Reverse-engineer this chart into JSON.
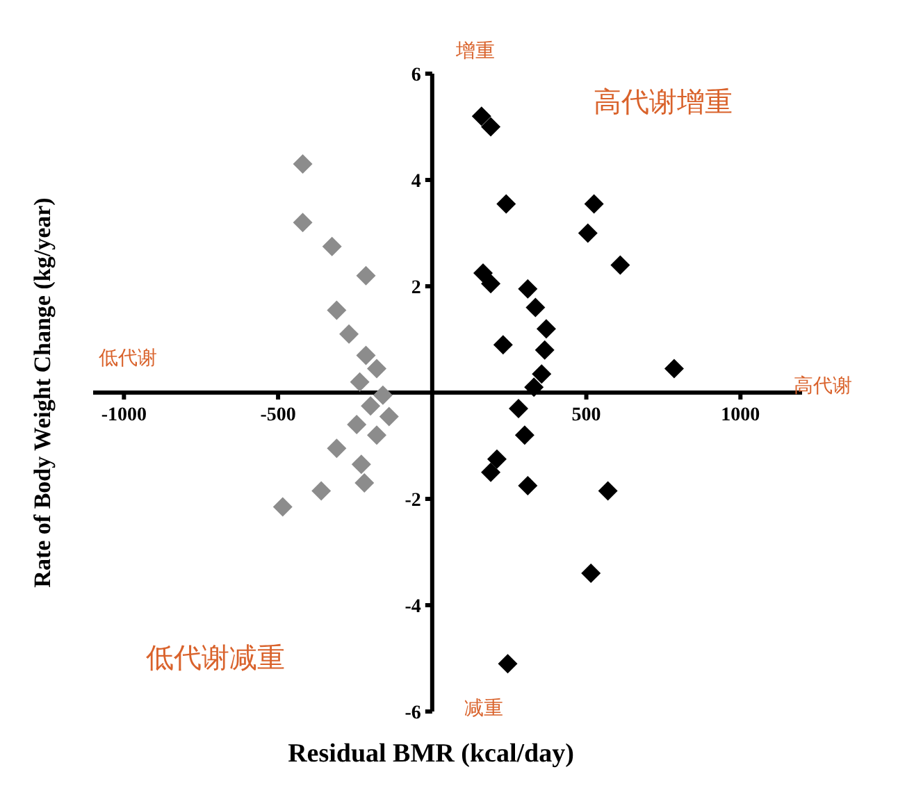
{
  "chart_data": {
    "type": "scatter",
    "xlabel": "Residual BMR (kcal/day)",
    "ylabel": "Rate of Body Weight Change (kg/year)",
    "xlim": [
      -1100,
      1200
    ],
    "ylim": [
      -6,
      6
    ],
    "xticks": [
      -1000,
      -500,
      500,
      1000
    ],
    "yticks": [
      -6,
      -4,
      -2,
      2,
      4,
      6
    ],
    "grid": false,
    "marker": "diamond",
    "series": [
      {
        "color": "#8c8c8c",
        "x": [
          -420,
          -420,
          -325,
          -215,
          -310,
          -270,
          -215,
          -180,
          -235,
          -160,
          -200,
          -140,
          -245,
          -180,
          -310,
          -230,
          -220,
          -360,
          -485
        ],
        "values": [
          4.3,
          3.2,
          2.75,
          2.2,
          1.55,
          1.1,
          0.7,
          0.45,
          0.2,
          -0.05,
          -0.25,
          -0.45,
          -0.6,
          -0.8,
          -1.05,
          -1.35,
          -1.7,
          -1.85,
          -2.15
        ]
      },
      {
        "color": "#000000",
        "x": [
          160,
          190,
          240,
          525,
          505,
          610,
          165,
          190,
          310,
          335,
          370,
          365,
          355,
          785,
          230,
          330,
          280,
          300,
          190,
          210,
          310,
          570,
          515,
          245
        ],
        "values": [
          5.2,
          5.0,
          3.55,
          3.55,
          3.0,
          2.4,
          2.25,
          2.05,
          1.95,
          1.6,
          1.2,
          0.8,
          0.35,
          0.45,
          0.9,
          0.1,
          -0.3,
          -0.8,
          -1.5,
          -1.25,
          -1.75,
          -1.85,
          -3.4,
          -5.1
        ]
      }
    ],
    "annotations": [
      "增重",
      "高代谢增重",
      "低代谢",
      "高代谢",
      "低代谢减重",
      "减重"
    ]
  }
}
